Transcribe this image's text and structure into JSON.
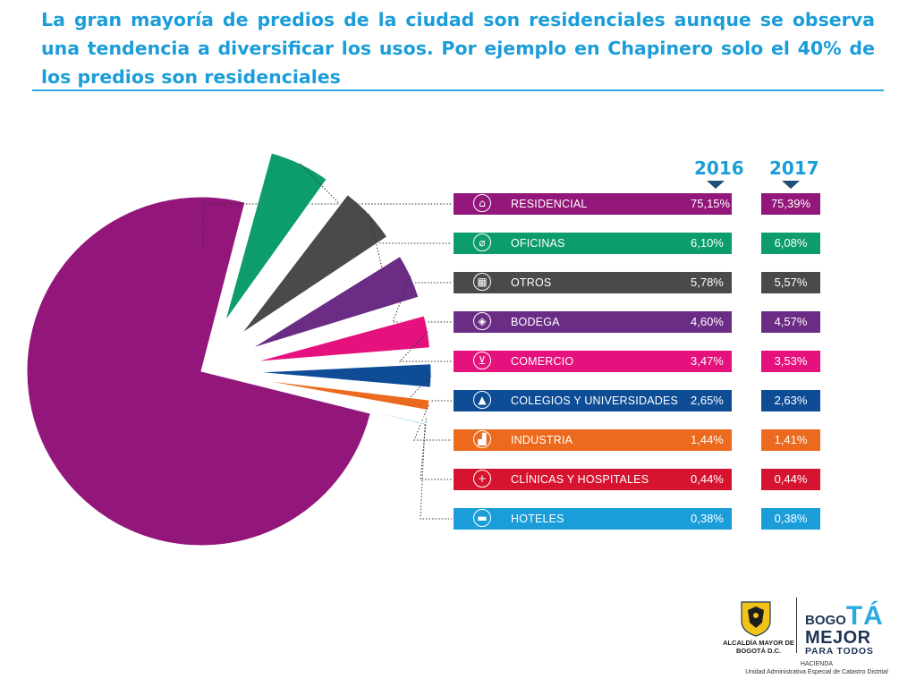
{
  "headline": "La gran mayoría de predios de la ciudad son residenciales aunque se observa una tendencia a diversificar los usos. Por ejemplo en Chapinero solo el 40% de los predios son residenciales",
  "years": [
    "2016",
    "2017"
  ],
  "colors": {
    "accent": "#1b9dd9",
    "rule": "#29abe2"
  },
  "chart_data": {
    "type": "pie",
    "title": "",
    "categories": [
      "RESIDENCIAL",
      "OFICINAS",
      "OTROS",
      "BODEGA",
      "COMERCIO",
      "COLEGIOS Y UNIVERSIDADES",
      "INDUSTRIA",
      "CLÍNICAS Y HOSPITALES",
      "HOTELES"
    ],
    "series": [
      {
        "name": "2016",
        "values": [
          75.15,
          6.1,
          5.78,
          4.6,
          3.47,
          2.65,
          1.44,
          0.44,
          0.38
        ],
        "labels": [
          "75,15%",
          "6,10%",
          "5,78%",
          "4,60%",
          "3,47%",
          "2,65%",
          "1,44%",
          "0,44%",
          "0,38%"
        ]
      },
      {
        "name": "2017",
        "values": [
          75.39,
          6.08,
          5.57,
          4.57,
          3.53,
          2.63,
          1.41,
          0.44,
          0.38
        ],
        "labels": [
          "75,39%",
          "6,08%",
          "5,57%",
          "4,57%",
          "3,53%",
          "2,63%",
          "1,41%",
          "0,44%",
          "0,38%"
        ]
      }
    ],
    "colors": [
      "#93167a",
      "#0d9d6b",
      "#4a4a4a",
      "#6a2c85",
      "#e5127d",
      "#0e4d96",
      "#ec6a1e",
      "#d7142f",
      "#1b9dd9"
    ],
    "icons": [
      "house-icon",
      "paperclip-icon",
      "building-icon",
      "box-icon",
      "cart-icon",
      "graduation-cap-icon",
      "factory-icon",
      "cross-icon",
      "bed-icon"
    ],
    "legend": "right"
  },
  "logo": {
    "alcaldia": "ALCALDÍA MAYOR DE BOGOTÁ D.C.",
    "bogota_small": "BOGO",
    "bogota_big": "TÁ",
    "mejor": "MEJOR",
    "para_todos": "PARA TODOS",
    "hacienda": "HACIENDA",
    "unidad": "Unidad Administrativa Especial de Catastro Distrital"
  }
}
